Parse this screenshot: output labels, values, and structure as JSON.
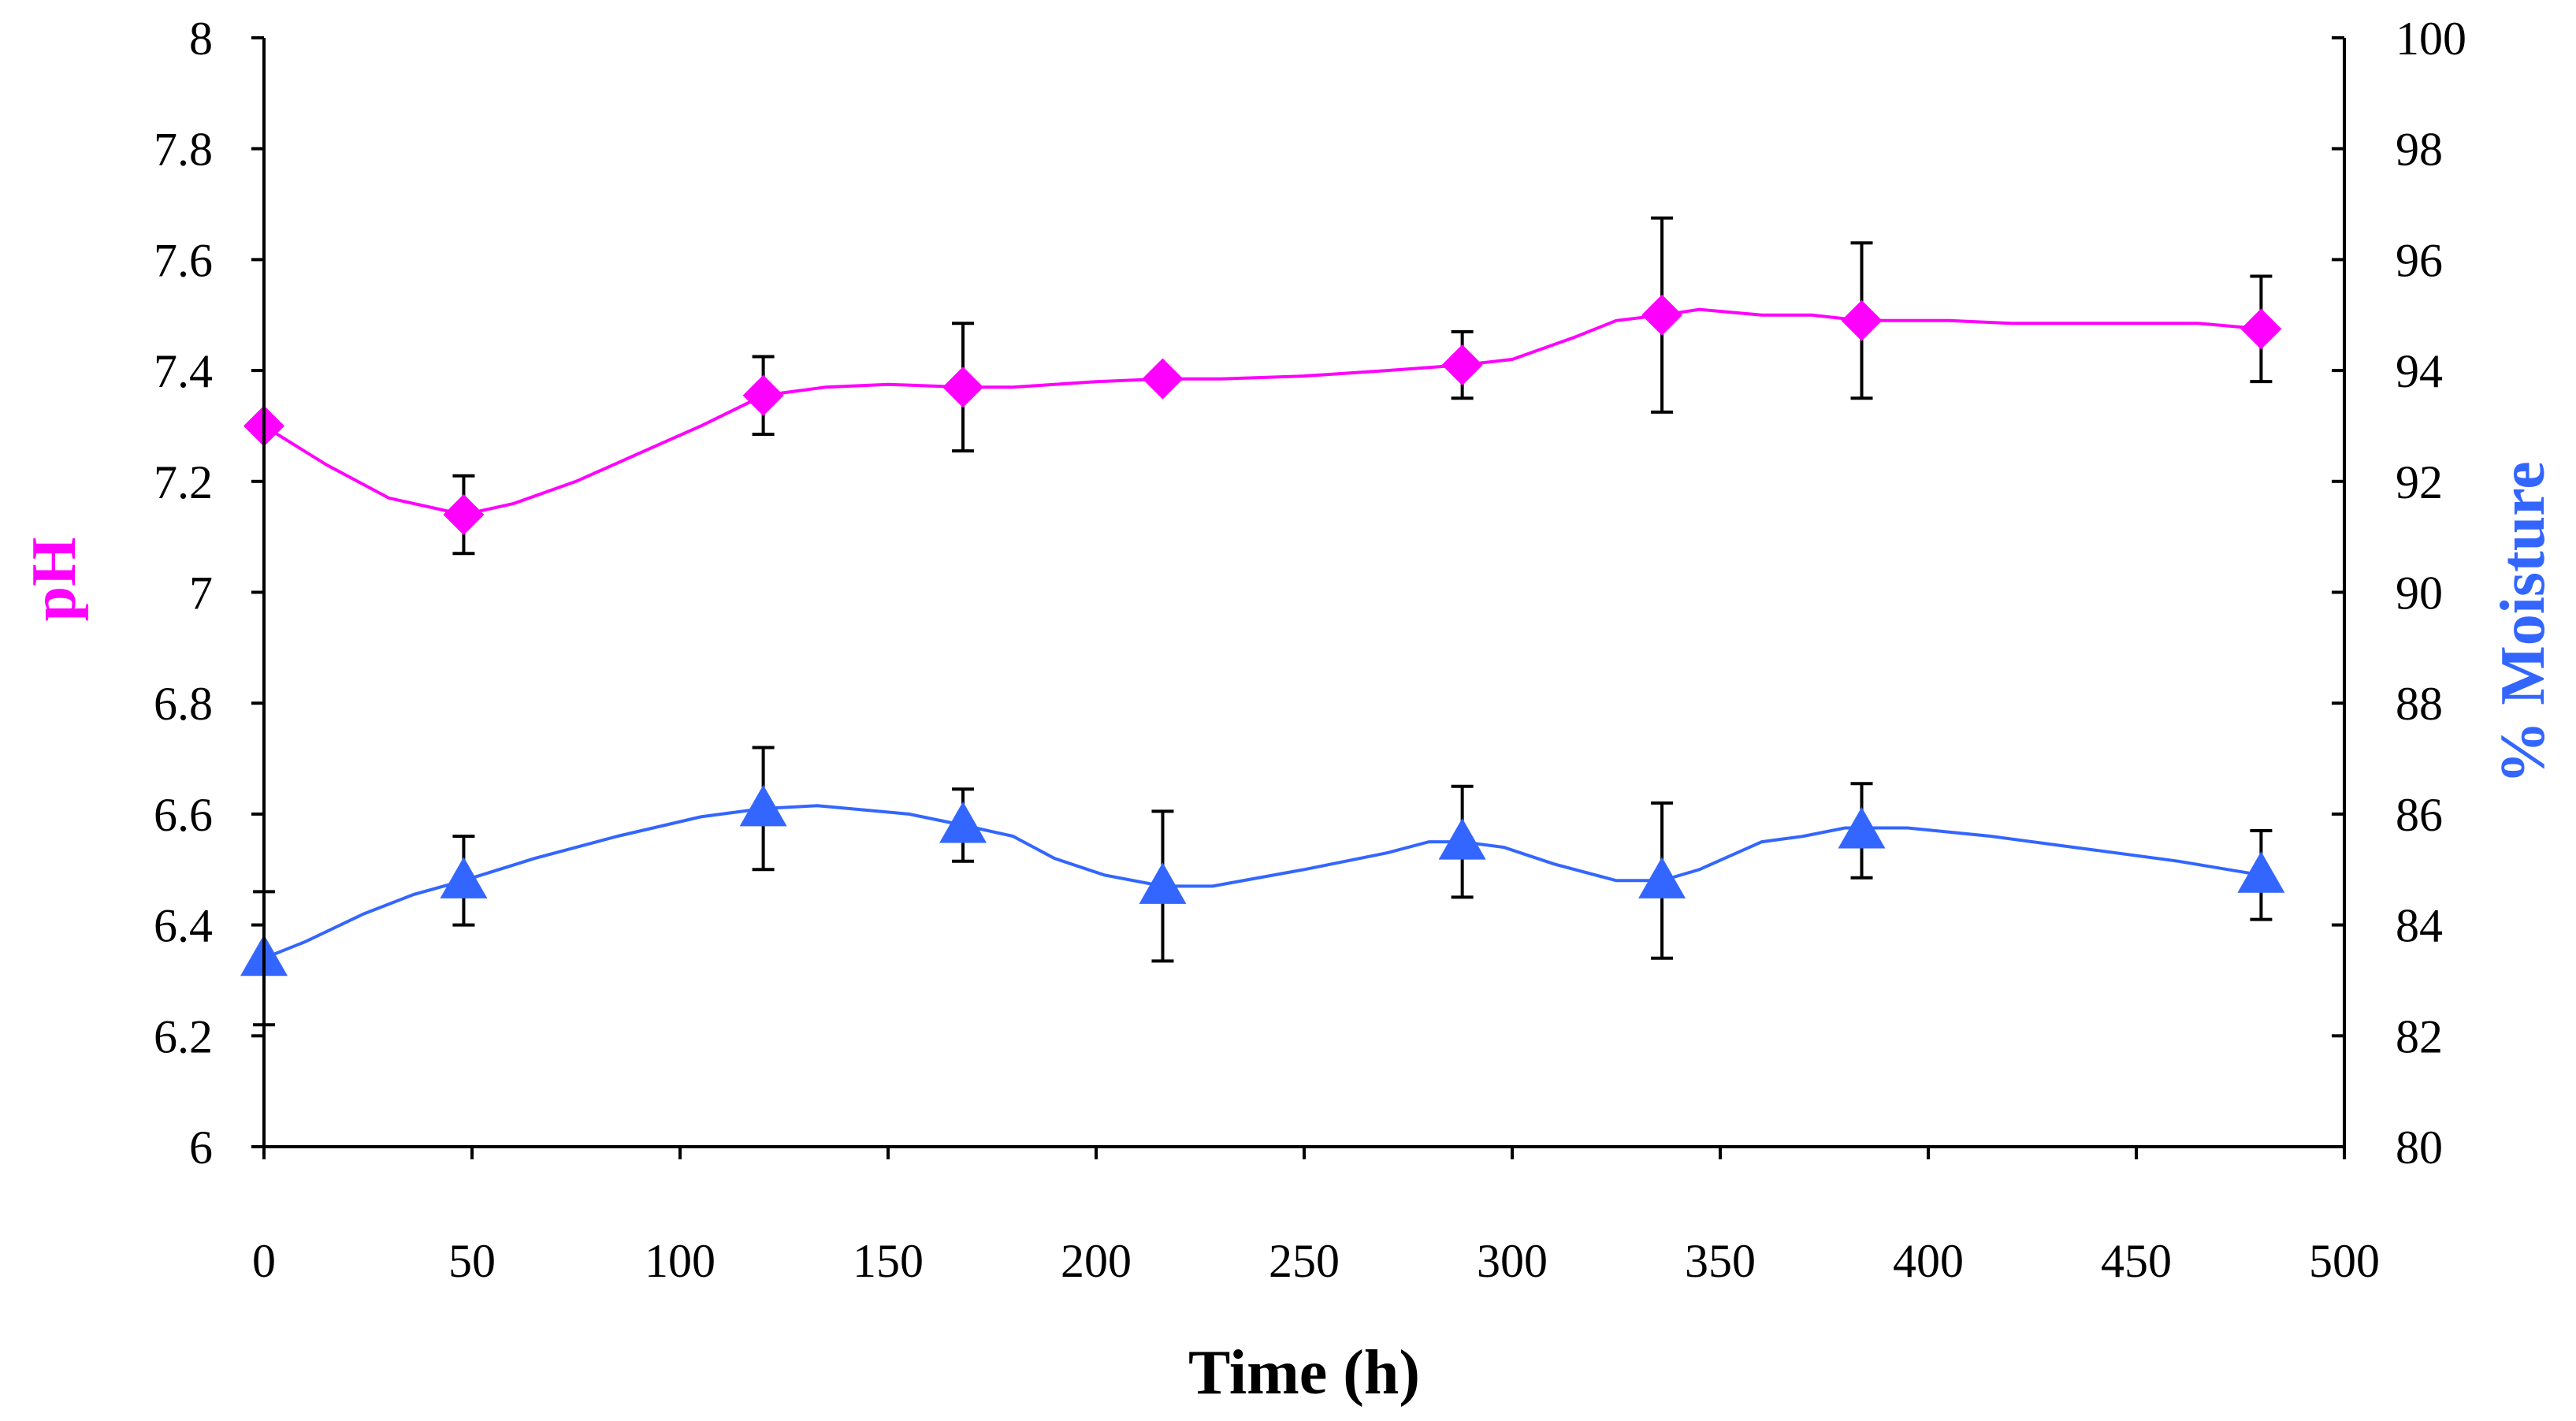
{
  "chart_data": {
    "type": "line",
    "title": "",
    "xlabel": "Time (h)",
    "ylabel_left": "pH",
    "ylabel_right": "% Moisture",
    "xlim": [
      0,
      500
    ],
    "ylim_left": [
      6,
      8
    ],
    "ylim_right": [
      80,
      100
    ],
    "x_ticks": [
      "0",
      "50",
      "100",
      "150",
      "200",
      "250",
      "300",
      "350",
      "400",
      "450",
      "500"
    ],
    "y_left_ticks": [
      "6",
      "6.2",
      "6.4",
      "6.6",
      "6.8",
      "7",
      "7.2",
      "7.4",
      "7.6",
      "7.8",
      "8"
    ],
    "y_right_ticks": [
      "80",
      "82",
      "84",
      "86",
      "88",
      "90",
      "92",
      "94",
      "96",
      "98",
      "100"
    ],
    "grid": false,
    "colors": {
      "ph": "#ff00ff",
      "moisture": "#3366ff",
      "axis": "#000000",
      "error_bar": "#000000"
    },
    "series": [
      {
        "name": "pH",
        "axis": "left",
        "marker": "diamond",
        "x": [
          0,
          48,
          120,
          168,
          216,
          288,
          336,
          384,
          480
        ],
        "values": [
          7.3,
          7.14,
          7.355,
          7.37,
          7.385,
          7.41,
          7.5,
          7.49,
          7.475
        ],
        "error": [
          0,
          0.07,
          0.07,
          0.115,
          0,
          0.06,
          0.175,
          0.14,
          0.095
        ],
        "curve": [
          [
            0,
            7.3
          ],
          [
            15,
            7.23
          ],
          [
            30,
            7.17
          ],
          [
            48,
            7.14
          ],
          [
            60,
            7.16
          ],
          [
            75,
            7.2
          ],
          [
            90,
            7.25
          ],
          [
            105,
            7.3
          ],
          [
            120,
            7.355
          ],
          [
            135,
            7.37
          ],
          [
            150,
            7.375
          ],
          [
            168,
            7.37
          ],
          [
            180,
            7.37
          ],
          [
            200,
            7.38
          ],
          [
            216,
            7.385
          ],
          [
            230,
            7.385
          ],
          [
            250,
            7.39
          ],
          [
            270,
            7.4
          ],
          [
            288,
            7.41
          ],
          [
            300,
            7.42
          ],
          [
            315,
            7.46
          ],
          [
            325,
            7.49
          ],
          [
            336,
            7.5
          ],
          [
            345,
            7.51
          ],
          [
            360,
            7.5
          ],
          [
            372,
            7.5
          ],
          [
            384,
            7.49
          ],
          [
            395,
            7.49
          ],
          [
            405,
            7.49
          ],
          [
            420,
            7.485
          ],
          [
            450,
            7.485
          ],
          [
            465,
            7.485
          ],
          [
            480,
            7.475
          ]
        ]
      },
      {
        "name": "% Moisture",
        "axis": "right",
        "marker": "triangle",
        "x": [
          0,
          48,
          120,
          168,
          216,
          288,
          336,
          384,
          480
        ],
        "values": [
          83.4,
          84.8,
          86.1,
          85.8,
          84.7,
          85.5,
          84.8,
          85.7,
          84.9
        ],
        "error": [
          1.2,
          0.8,
          1.1,
          0.65,
          1.35,
          1.0,
          1.4,
          0.85,
          0.8
        ],
        "curve": [
          [
            0,
            83.4
          ],
          [
            10,
            83.7
          ],
          [
            24,
            84.2
          ],
          [
            36,
            84.55
          ],
          [
            48,
            84.8
          ],
          [
            65,
            85.2
          ],
          [
            85,
            85.6
          ],
          [
            105,
            85.95
          ],
          [
            120,
            86.1
          ],
          [
            133,
            86.15
          ],
          [
            155,
            86.0
          ],
          [
            168,
            85.8
          ],
          [
            180,
            85.6
          ],
          [
            190,
            85.2
          ],
          [
            202,
            84.9
          ],
          [
            216,
            84.7
          ],
          [
            228,
            84.7
          ],
          [
            250,
            85.0
          ],
          [
            270,
            85.3
          ],
          [
            280,
            85.5
          ],
          [
            288,
            85.5
          ],
          [
            298,
            85.4
          ],
          [
            310,
            85.1
          ],
          [
            325,
            84.8
          ],
          [
            336,
            84.8
          ],
          [
            345,
            85.0
          ],
          [
            360,
            85.5
          ],
          [
            370,
            85.6
          ],
          [
            380,
            85.75
          ],
          [
            384,
            85.75
          ],
          [
            395,
            85.75
          ],
          [
            415,
            85.6
          ],
          [
            440,
            85.35
          ],
          [
            460,
            85.15
          ],
          [
            480,
            84.9
          ]
        ]
      }
    ]
  }
}
